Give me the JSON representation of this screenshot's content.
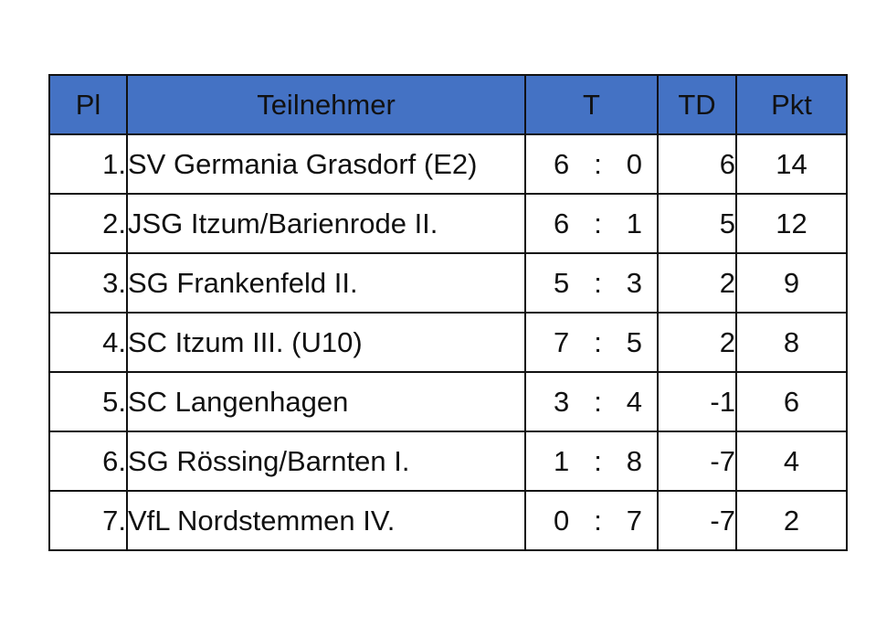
{
  "table": {
    "headers": {
      "pl": "Pl",
      "team": "Teilnehmer",
      "t": "T",
      "td": "TD",
      "pkt": "Pkt"
    },
    "separator": ":",
    "rows": [
      {
        "pl": "1.",
        "team": "SV Germania Grasdorf (E2)",
        "goals_for": "6",
        "goals_against": "0",
        "td": "6",
        "pkt": "14"
      },
      {
        "pl": "2.",
        "team": "JSG Itzum/Barienrode II.",
        "goals_for": "6",
        "goals_against": "1",
        "td": "5",
        "pkt": "12"
      },
      {
        "pl": "3.",
        "team": "SG Frankenfeld II.",
        "goals_for": "5",
        "goals_against": "3",
        "td": "2",
        "pkt": "9"
      },
      {
        "pl": "4.",
        "team": "SC Itzum III. (U10)",
        "goals_for": "7",
        "goals_against": "5",
        "td": "2",
        "pkt": "8"
      },
      {
        "pl": "5.",
        "team": "SC Langenhagen",
        "goals_for": "3",
        "goals_against": "4",
        "td": "-1",
        "pkt": "6"
      },
      {
        "pl": "6.",
        "team": "SG Rössing/Barnten I.",
        "goals_for": "1",
        "goals_against": "8",
        "td": "-7",
        "pkt": "4"
      },
      {
        "pl": "7.",
        "team": "VfL Nordstemmen IV.",
        "goals_for": "0",
        "goals_against": "7",
        "td": "-7",
        "pkt": "2"
      }
    ]
  },
  "colors": {
    "header_bg": "#4472c4",
    "border": "#111111",
    "text": "#111111"
  }
}
